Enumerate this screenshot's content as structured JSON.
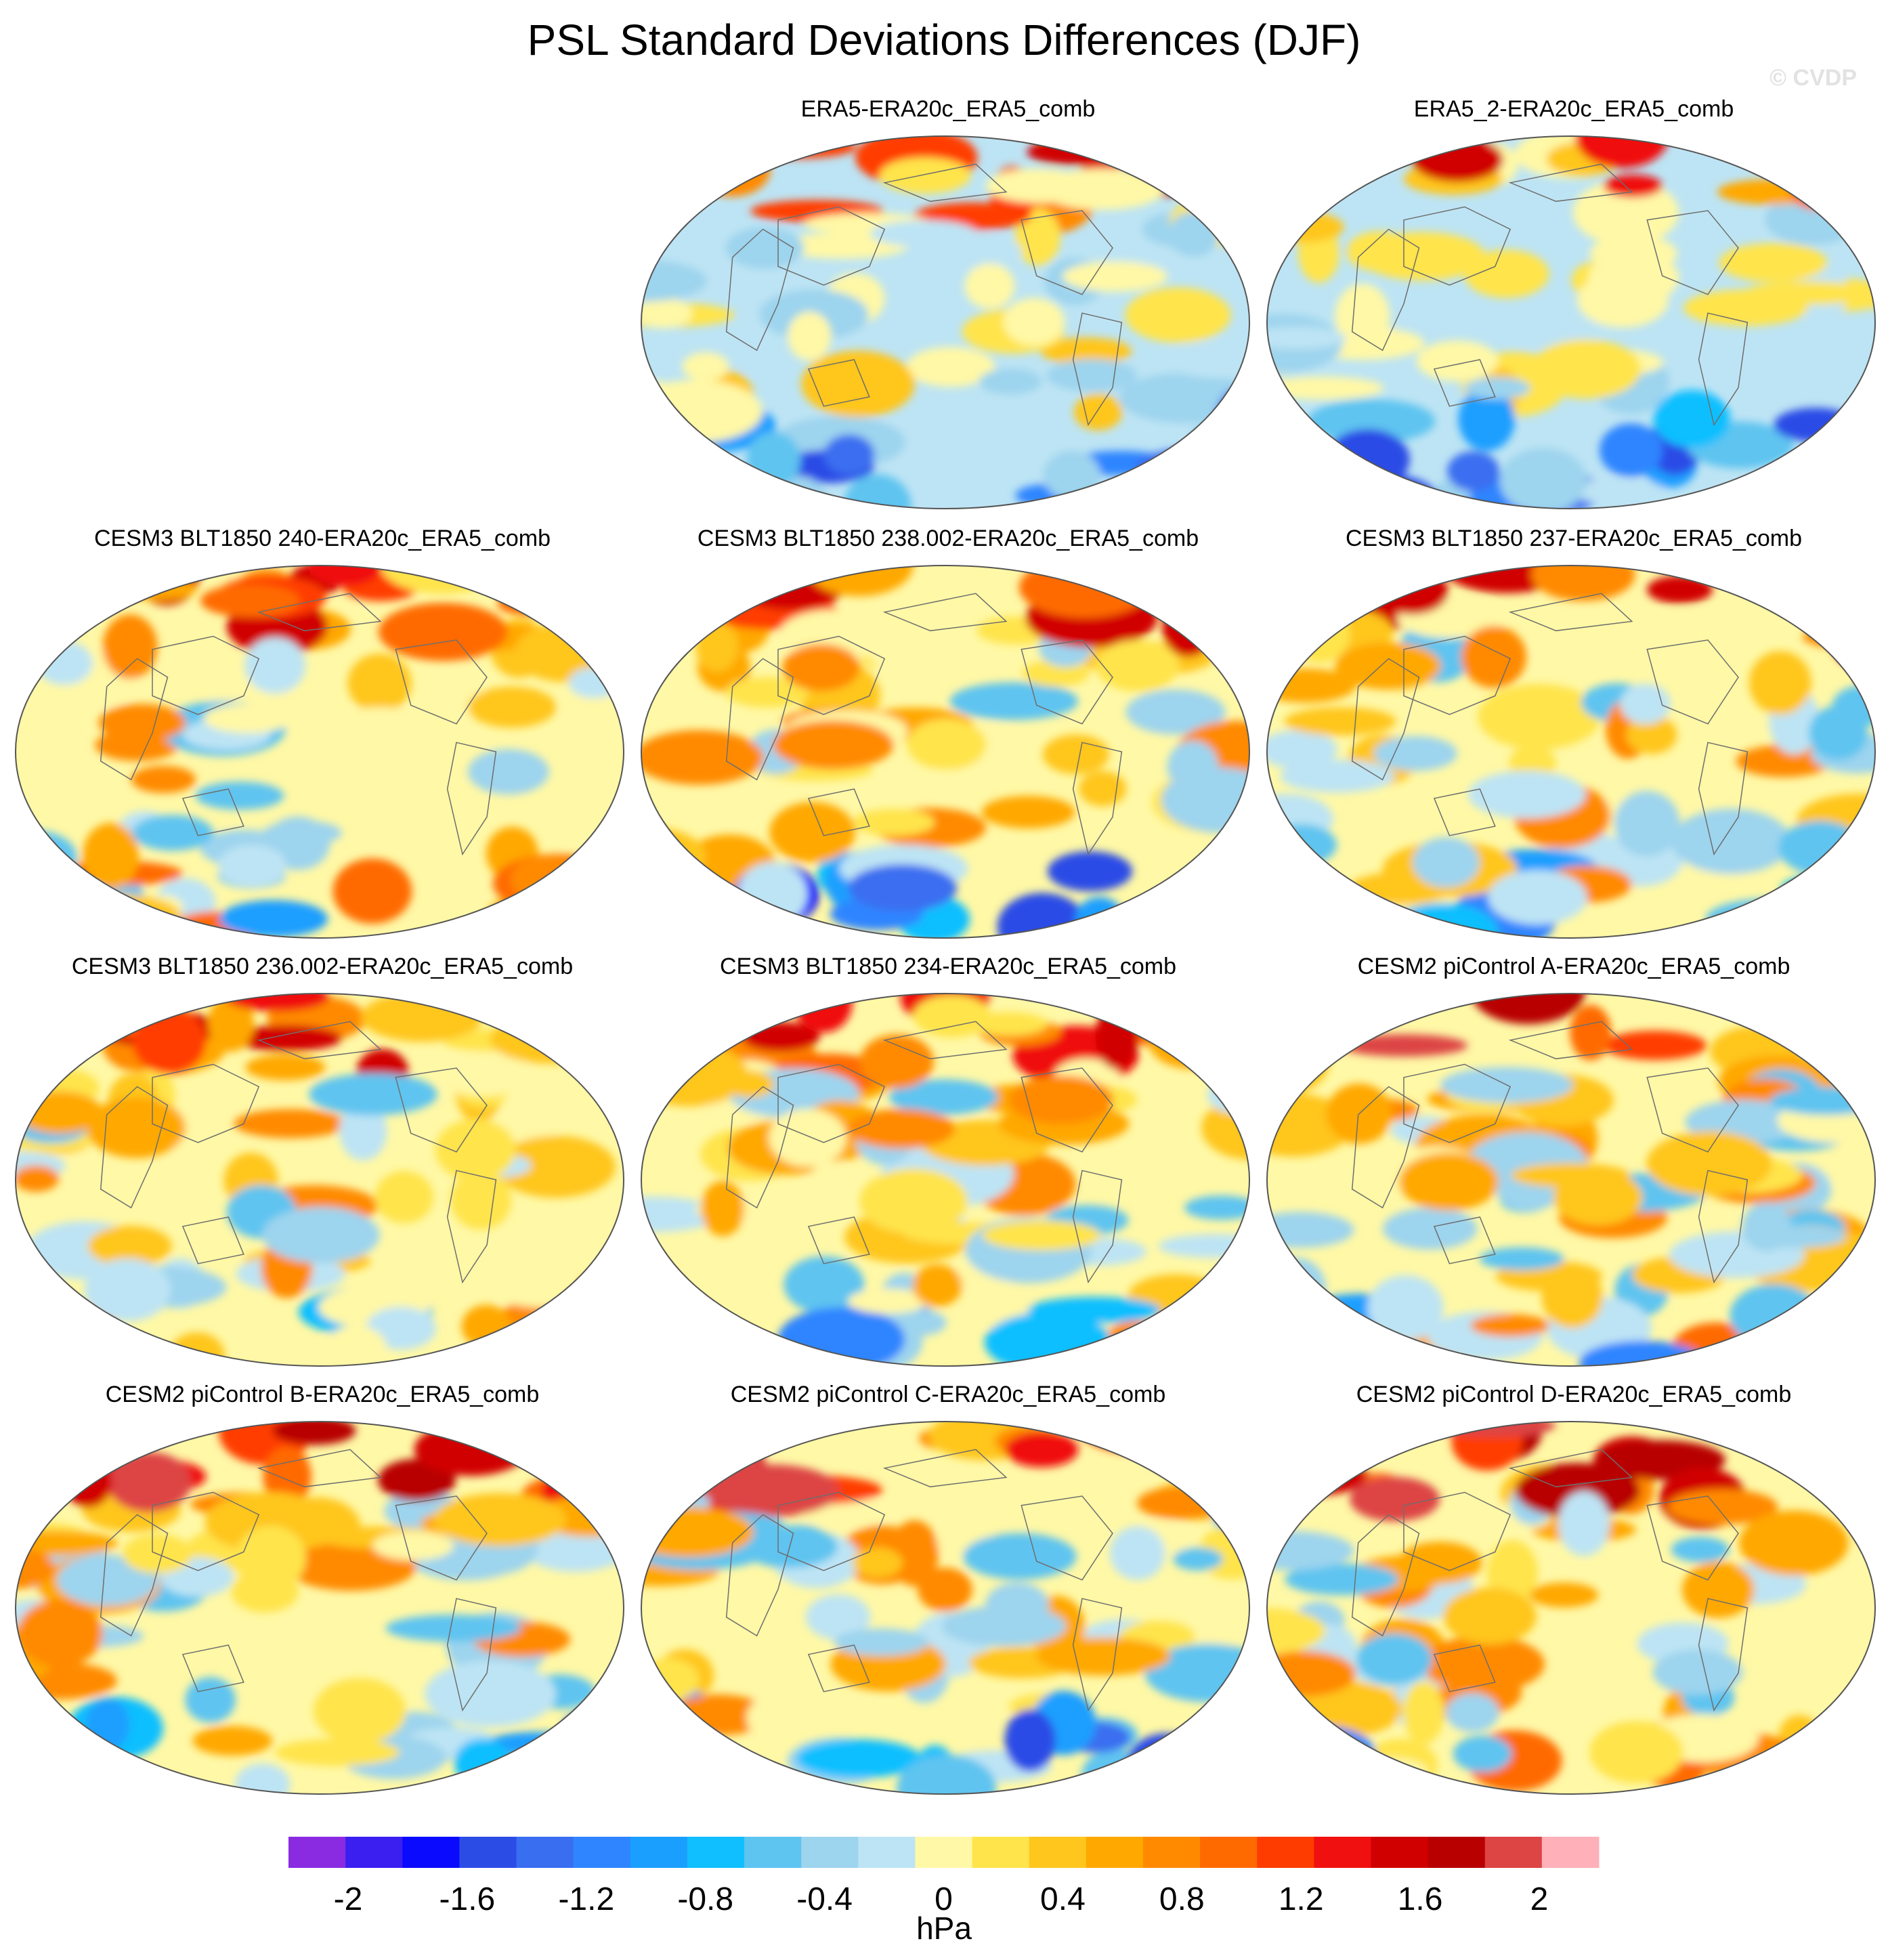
{
  "chart_data": {
    "type": "heatmap",
    "title": "PSL Standard Deviations Differences (DJF)",
    "watermark": "© CVDP",
    "projection": "global-robinson",
    "panels": [
      {
        "label": "ERA5-ERA20c_ERA5_comb"
      },
      {
        "label": "ERA5_2-ERA20c_ERA5_comb"
      },
      {
        "label": "CESM3 BLT1850 240-ERA20c_ERA5_comb"
      },
      {
        "label": "CESM3 BLT1850 238.002-ERA20c_ERA5_comb"
      },
      {
        "label": "CESM3 BLT1850 237-ERA20c_ERA5_comb"
      },
      {
        "label": "CESM3 BLT1850 236.002-ERA20c_ERA5_comb"
      },
      {
        "label": "CESM3 BLT1850 234-ERA20c_ERA5_comb"
      },
      {
        "label": "CESM2 piControl A-ERA20c_ERA5_comb"
      },
      {
        "label": "CESM2 piControl B-ERA20c_ERA5_comb"
      },
      {
        "label": "CESM2 piControl C-ERA20c_ERA5_comb"
      },
      {
        "label": "CESM2 piControl D-ERA20c_ERA5_comb"
      }
    ],
    "colorbar": {
      "units": "hPa",
      "range": [
        -2.2,
        2.2
      ],
      "step": 0.2,
      "tick_labels": [
        "-2",
        "-1.6",
        "-1.2",
        "-0.8",
        "-0.4",
        "0",
        "0.4",
        "0.8",
        "1.2",
        "1.6",
        "2"
      ],
      "colors": [
        "#8a2be2",
        "#3b1ef0",
        "#0a0aff",
        "#2c4ce6",
        "#3a6ef0",
        "#2f85ff",
        "#1a9fff",
        "#10bfff",
        "#5ec4f0",
        "#9dd4ee",
        "#bde4f4",
        "#fff8a6",
        "#ffe44c",
        "#ffc61e",
        "#ffa800",
        "#ff8a00",
        "#ff6a00",
        "#ff3c00",
        "#f01010",
        "#d10000",
        "#b80000",
        "#dd4444",
        "#ffb0b8"
      ]
    }
  }
}
